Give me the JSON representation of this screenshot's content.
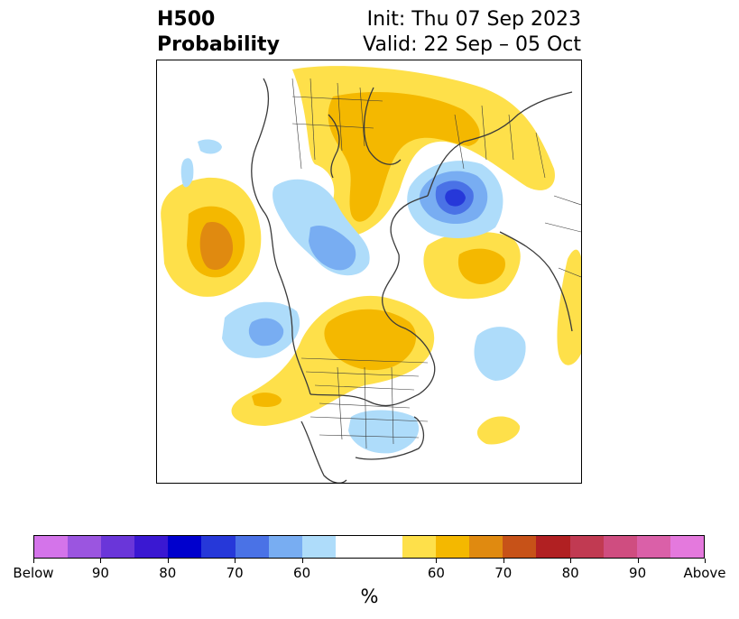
{
  "title": {
    "left_line1": "H500",
    "left_line2": "Probability",
    "right_line1": "Init: Thu 07 Sep 2023",
    "right_line2": "Valid: 22 Sep – 05 Oct"
  },
  "colorbar": {
    "unit": "%",
    "colors": [
      "#d474ea",
      "#9b55e0",
      "#6a36d9",
      "#3a18d2",
      "#0000cd",
      "#2638d9",
      "#4a72e6",
      "#78adf2",
      "#aedcfa",
      "#ffffff",
      "#ffffff",
      "#fee04a",
      "#f4b800",
      "#e08a10",
      "#c75218",
      "#b12022",
      "#c13a52",
      "#cf4d80",
      "#da60a8",
      "#e479dd"
    ],
    "tick_labels": [
      "Below",
      "90",
      "80",
      "70",
      "60",
      "60",
      "70",
      "80",
      "90",
      "Above"
    ]
  },
  "colors": {
    "blue_light": "#aedcfa",
    "blue_mid": "#78adf2",
    "blue_dark": "#4a72e6",
    "blue_deeper": "#2638d9",
    "yellow_light": "#fee04a",
    "yellow_mid": "#f4b800",
    "orange": "#e08a10",
    "coast": "#3a3a3a"
  }
}
